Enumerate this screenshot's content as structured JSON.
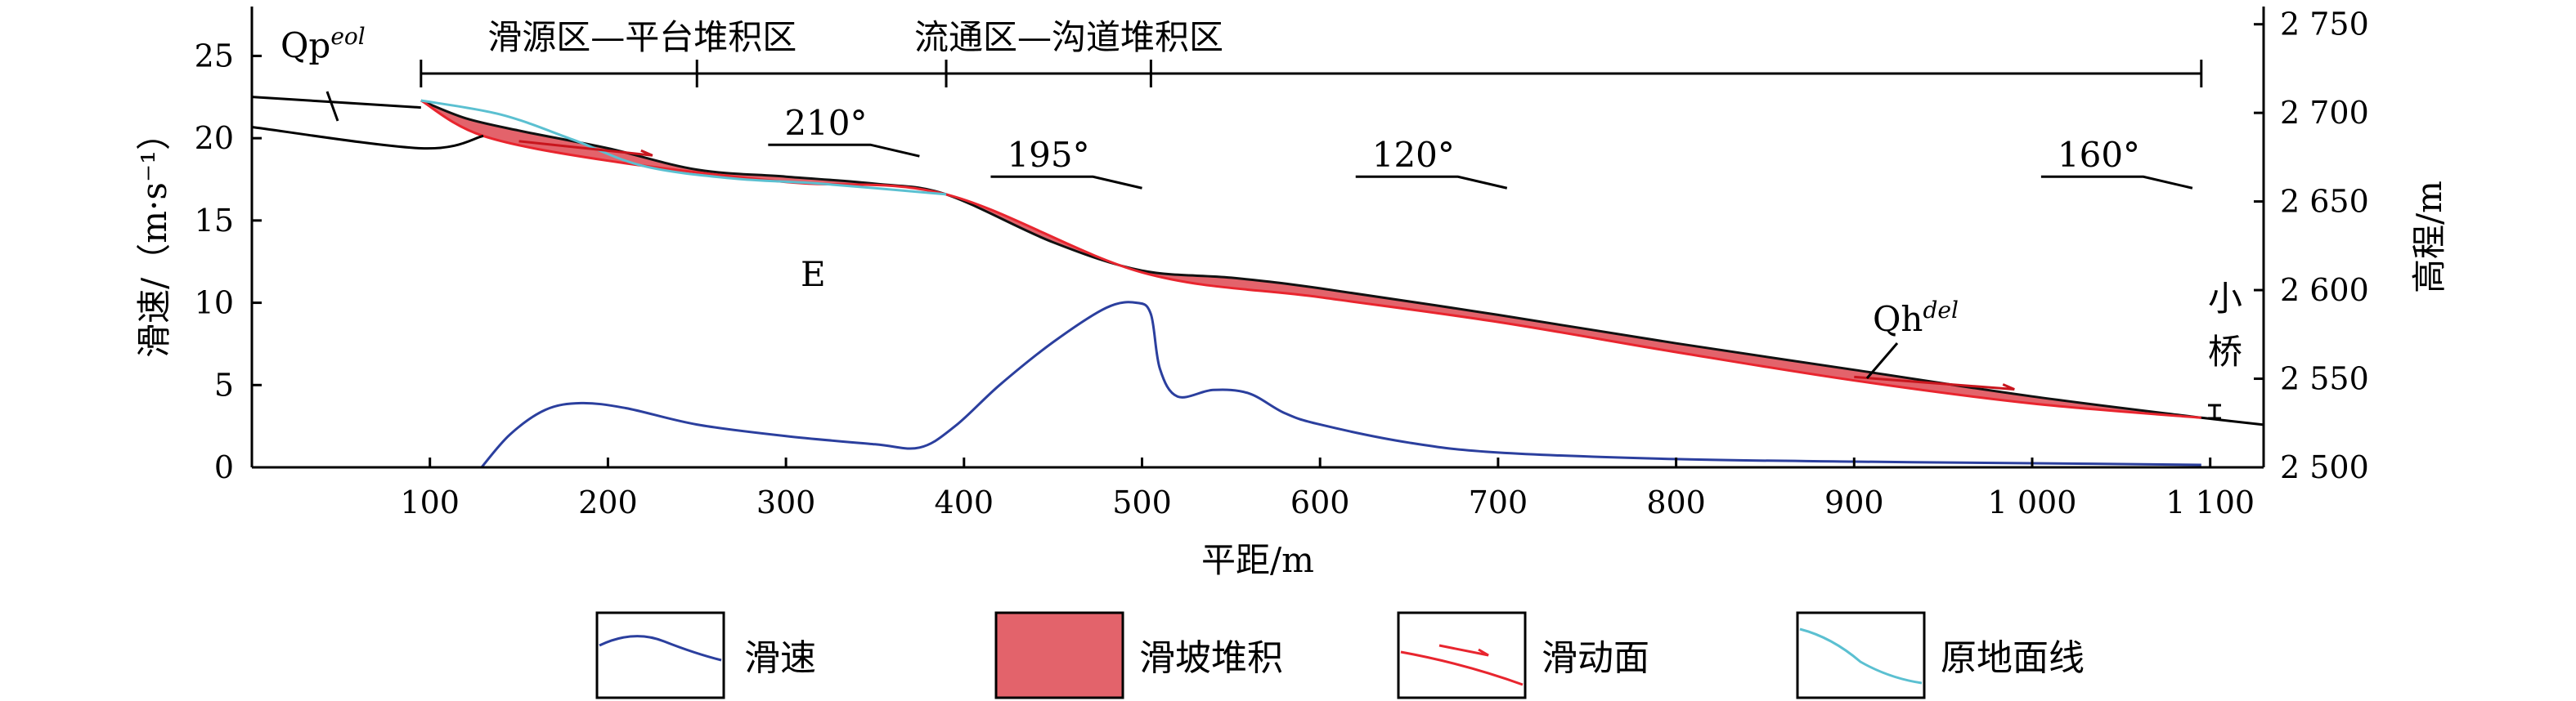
{
  "chart_data": {
    "type": "line",
    "xlabel": "平距/m",
    "ylabel_left": "滑速/（m·s⁻¹）",
    "ylabel_right": "高程/m",
    "xlim": [
      0,
      1130
    ],
    "ylim_left": [
      0,
      28
    ],
    "ylim_right": [
      2500,
      2760
    ],
    "x_ticks": [
      100,
      200,
      300,
      400,
      500,
      600,
      700,
      800,
      900,
      1000,
      1100
    ],
    "x_tick_labels": [
      "100",
      "200",
      "300",
      "400",
      "500",
      "600",
      "700",
      "800",
      "900",
      "1 000",
      "1 100"
    ],
    "y_left_ticks": [
      0,
      5,
      10,
      15,
      20,
      25
    ],
    "y_right_ticks": [
      2500,
      2550,
      2600,
      2650,
      2700,
      2750
    ],
    "y_right_tick_labels": [
      "2 500",
      "2 550",
      "2 600",
      "2 650",
      "2 700",
      "2 750"
    ],
    "zones": [
      {
        "label": "滑源区—平台堆积区",
        "x_start": 95,
        "x_mid": 250,
        "x_end": 390
      },
      {
        "label": "流通区—沟道堆积区",
        "x_start": 390,
        "x_mid": 505,
        "x_end": 1095
      }
    ],
    "directions": [
      {
        "label": "210°",
        "x": 290,
        "x_end": 375,
        "y": 2682
      },
      {
        "label": "195°",
        "x": 415,
        "x_end": 500,
        "y": 2664
      },
      {
        "label": "120°",
        "x": 620,
        "x_end": 705,
        "y": 2664
      },
      {
        "label": "160°",
        "x": 1005,
        "x_end": 1090,
        "y": 2664
      }
    ],
    "annotations": {
      "qp_base": "Qp",
      "qp_sup": "eol",
      "qh_base": "Qh",
      "qh_sup": "del",
      "e": "E",
      "bridge": [
        "小",
        "桥"
      ]
    },
    "series": [
      {
        "name": "滑速",
        "axis": "left",
        "color": "#2b3f9e",
        "x": [
          129,
          145,
          165,
          185,
          210,
          250,
          300,
          350,
          375,
          395,
          420,
          450,
          480,
          497,
          505,
          510,
          520,
          540,
          560,
          580,
          600,
          650,
          700,
          800,
          900,
          1000,
          1095
        ],
        "values": [
          0,
          2.0,
          3.5,
          3.9,
          3.6,
          2.6,
          1.9,
          1.4,
          1.2,
          2.5,
          5.0,
          7.6,
          9.7,
          10.0,
          9.3,
          6.0,
          4.3,
          4.7,
          4.5,
          3.3,
          2.6,
          1.5,
          0.9,
          0.5,
          0.35,
          0.25,
          0.15
        ]
      },
      {
        "name": "原地面线",
        "axis": "right",
        "color": "#5bc0d1",
        "x": [
          95,
          140,
          180,
          220,
          270,
          320,
          390
        ],
        "values": [
          2707,
          2699,
          2685,
          2670,
          2663,
          2660,
          2654
        ]
      },
      {
        "name": "滑动面",
        "axis": "right",
        "color": "#e8252e",
        "x": [
          95,
          130,
          200,
          300,
          390,
          500,
          600,
          700,
          800,
          900,
          1000,
          1095
        ],
        "values": [
          2707,
          2687,
          2673,
          2661,
          2654,
          2610,
          2596,
          2582,
          2565,
          2549,
          2536,
          2528
        ]
      },
      {
        "name": "滑坡堆积",
        "axis": "right",
        "color": "#e3636b",
        "x": [
          95,
          120,
          150,
          200,
          250,
          300,
          350,
          390,
          450,
          500,
          550,
          600,
          700,
          800,
          900,
          1000,
          1095
        ],
        "values": [
          2707,
          2697,
          2690,
          2680,
          2668,
          2664,
          2660,
          2654,
          2627,
          2611,
          2607,
          2601,
          2586,
          2570,
          2555,
          2540,
          2528
        ]
      }
    ],
    "boundaries": [
      {
        "x": [
          0,
          95
        ],
        "values": [
          2709,
          2703
        ],
        "axis": "right"
      },
      {
        "x": [
          0,
          95,
          130
        ],
        "values": [
          2692,
          2680,
          2687
        ],
        "axis": "right"
      },
      {
        "x": [
          1095,
          1130
        ],
        "values": [
          2528,
          2524
        ],
        "axis": "right"
      }
    ],
    "legend": {
      "placement": "bottom",
      "items": [
        {
          "label": "滑速",
          "kind": "speed"
        },
        {
          "label": "滑坡堆积",
          "kind": "deposit"
        },
        {
          "label": "滑动面",
          "kind": "slip"
        },
        {
          "label": "原地面线",
          "kind": "ground"
        }
      ]
    }
  }
}
